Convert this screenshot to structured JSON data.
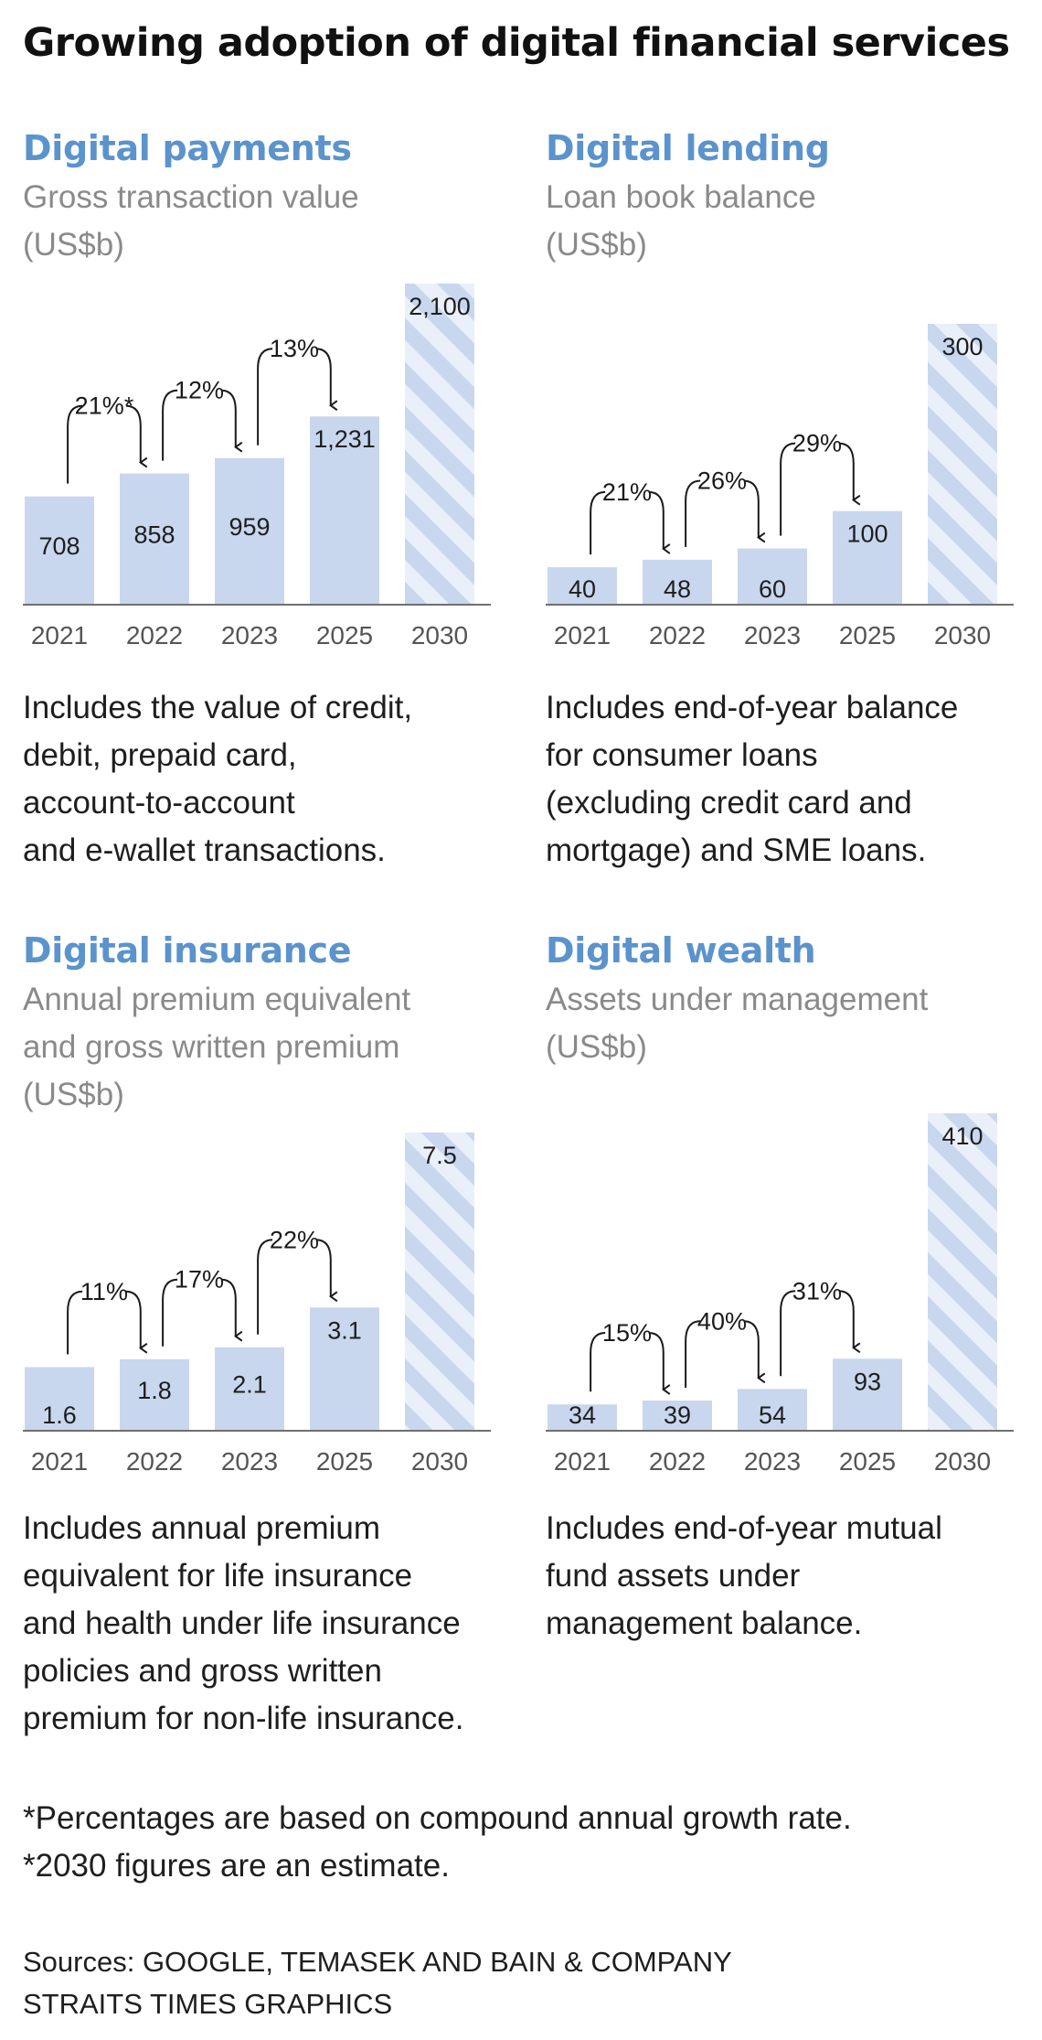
{
  "page": {
    "title": "Growing adoption of digital financial services",
    "footnotes": [
      "*Percentages are based on compound annual growth rate.",
      "*2030 figures are an estimate."
    ],
    "sources": [
      "Sources: GOOGLE, TEMASEK AND BAIN & COMPANY",
      "STRAITS TIMES GRAPHICS"
    ]
  },
  "colors": {
    "bar": "#c8d7ee",
    "hatch": "#eaf0f9",
    "axis": "#6f6f6f",
    "panel_title": "#5b93cd",
    "subtitle": "#8a8a8a",
    "text": "#1e1e1e"
  },
  "panels": [
    {
      "title": "Digital payments",
      "subtitle": "Gross transaction value\n(US$b)",
      "note": "Includes the value of credit,\ndebit, prepaid card,\naccount-to-account\nand e-wallet transactions."
    },
    {
      "title": "Digital lending",
      "subtitle": "Loan book balance\n(US$b)",
      "note": "Includes end-of-year balance\nfor consumer loans\n(excluding credit card and\nmortgage) and SME loans."
    },
    {
      "title": "Digital insurance",
      "subtitle": "Annual premium equivalent\nand gross written premium\n(US$b)",
      "note": "Includes annual premium\nequivalent for life insurance\nand health under life insurance\npolicies and gross written\npremium for non-life insurance."
    },
    {
      "title": "Digital wealth",
      "subtitle": "Assets under management\n(US$b)",
      "note": "Includes end-of-year mutual\nfund assets under\nmanagement balance."
    }
  ],
  "chart_data": [
    {
      "type": "bar",
      "title": "Digital payments",
      "ylabel": "US$b",
      "categories": [
        "2021",
        "2022",
        "2023",
        "2025",
        "2030"
      ],
      "values": [
        708,
        858,
        959,
        1231,
        2100
      ],
      "value_labels": [
        "708",
        "858",
        "959",
        "1,231",
        "2,100"
      ],
      "estimate": [
        false,
        false,
        false,
        false,
        true
      ],
      "ylim": [
        0,
        2100
      ],
      "growth": [
        {
          "from": 0,
          "to": 1,
          "label": "21%*"
        },
        {
          "from": 1,
          "to": 2,
          "label": "12%"
        },
        {
          "from": 2,
          "to": 3,
          "label": "13%"
        }
      ]
    },
    {
      "type": "bar",
      "title": "Digital lending",
      "ylabel": "US$b",
      "categories": [
        "2021",
        "2022",
        "2023",
        "2025",
        "2030"
      ],
      "values": [
        40,
        48,
        60,
        100,
        300
      ],
      "value_labels": [
        "40",
        "48",
        "60",
        "100",
        "300"
      ],
      "estimate": [
        false,
        false,
        false,
        false,
        true
      ],
      "ylim": [
        0,
        300
      ],
      "growth": [
        {
          "from": 0,
          "to": 1,
          "label": "21%"
        },
        {
          "from": 1,
          "to": 2,
          "label": "26%"
        },
        {
          "from": 2,
          "to": 3,
          "label": "29%"
        }
      ]
    },
    {
      "type": "bar",
      "title": "Digital insurance",
      "ylabel": "US$b",
      "categories": [
        "2021",
        "2022",
        "2023",
        "2025",
        "2030"
      ],
      "values": [
        1.6,
        1.8,
        2.1,
        3.1,
        7.5
      ],
      "value_labels": [
        "1.6",
        "1.8",
        "2.1",
        "3.1",
        "7.5"
      ],
      "estimate": [
        false,
        false,
        false,
        false,
        true
      ],
      "ylim": [
        0,
        7.5
      ],
      "growth": [
        {
          "from": 0,
          "to": 1,
          "label": "11%"
        },
        {
          "from": 1,
          "to": 2,
          "label": "17%"
        },
        {
          "from": 2,
          "to": 3,
          "label": "22%"
        }
      ]
    },
    {
      "type": "bar",
      "title": "Digital wealth",
      "ylabel": "US$b",
      "categories": [
        "2021",
        "2022",
        "2023",
        "2025",
        "2030"
      ],
      "values": [
        34,
        39,
        54,
        93,
        410
      ],
      "value_labels": [
        "34",
        "39",
        "54",
        "93",
        "410"
      ],
      "estimate": [
        false,
        false,
        false,
        false,
        true
      ],
      "ylim": [
        0,
        410
      ],
      "growth": [
        {
          "from": 0,
          "to": 1,
          "label": "15%"
        },
        {
          "from": 1,
          "to": 2,
          "label": "40%"
        },
        {
          "from": 2,
          "to": 3,
          "label": "31%"
        }
      ]
    }
  ]
}
